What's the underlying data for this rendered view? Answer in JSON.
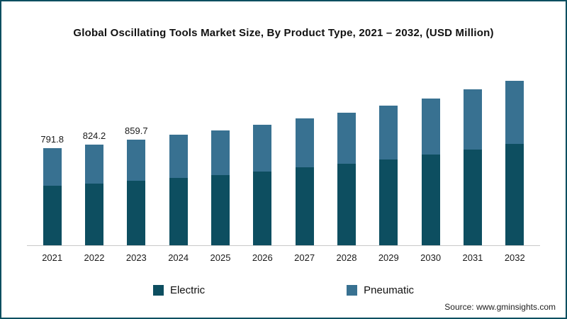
{
  "title": "Global Oscillating Tools Market Size, By Product Type, 2021 – 2032, (USD Million)",
  "source": "Source: www.gminsights.com",
  "colors": {
    "electric": "#0d4e60",
    "pneumatic": "#387191",
    "frame_border": "#0d4e60",
    "axis": "#c8c8c8"
  },
  "legend": [
    {
      "label": "Electric",
      "color": "#0d4e60"
    },
    {
      "label": "Pneumatic",
      "color": "#387191"
    }
  ],
  "chart_data": {
    "type": "bar",
    "stacked": true,
    "title": "Global Oscillating Tools Market Size, By Product Type, 2021 – 2032, (USD Million)",
    "xlabel": "",
    "ylabel": "USD Million",
    "ylim": [
      0,
      1400
    ],
    "grid": false,
    "legend_position": "bottom",
    "categories": [
      "2021",
      "2022",
      "2023",
      "2024",
      "2025",
      "2026",
      "2027",
      "2028",
      "2029",
      "2030",
      "2031",
      "2032"
    ],
    "series": [
      {
        "name": "Electric",
        "color": "#0d4e60",
        "values": [
          485,
          505,
          528,
          552,
          575,
          602,
          635,
          663,
          698,
          740,
          782,
          825
        ]
      },
      {
        "name": "Pneumatic",
        "color": "#387191",
        "values": [
          306.8,
          319.2,
          331.7,
          348,
          363,
          383,
          400,
          422,
          442,
          460,
          488,
          515
        ]
      }
    ],
    "totals": [
      791.8,
      824.2,
      859.7,
      900,
      938,
      985,
      1035,
      1085,
      1140,
      1200,
      1270,
      1340
    ],
    "data_labels": [
      "791.8",
      "824.2",
      "859.7",
      null,
      null,
      null,
      null,
      null,
      null,
      null,
      null,
      null
    ]
  }
}
